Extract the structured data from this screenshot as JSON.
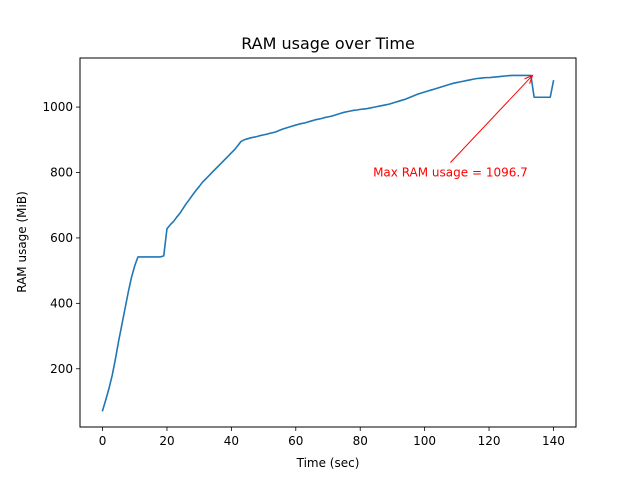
{
  "chart_data": {
    "type": "line",
    "title": "RAM usage over Time",
    "xlabel": "Time (sec)",
    "ylabel": "RAM usage (MiB)",
    "xlim": [
      -7,
      147
    ],
    "ylim": [
      22,
      1150
    ],
    "xticks": [
      0,
      20,
      40,
      60,
      80,
      100,
      120,
      140
    ],
    "yticks": [
      200,
      400,
      600,
      800,
      1000
    ],
    "grid": false,
    "series": [
      {
        "color": "#1f77b4",
        "x": [
          0,
          1,
          2,
          3,
          4,
          5,
          6,
          7,
          8,
          9,
          10,
          11,
          12,
          13,
          14,
          15,
          16,
          17,
          18,
          19,
          20,
          21,
          22,
          23,
          24,
          25,
          26,
          27,
          28,
          29,
          30,
          31,
          32,
          33,
          34,
          35,
          36,
          37,
          38,
          39,
          40,
          41,
          42,
          43,
          44,
          45,
          46,
          47,
          48,
          49,
          50,
          51,
          52,
          53,
          54,
          55,
          56,
          57,
          58,
          59,
          60,
          61,
          62,
          63,
          64,
          65,
          66,
          67,
          68,
          69,
          70,
          71,
          72,
          73,
          74,
          75,
          76,
          77,
          78,
          79,
          80,
          81,
          82,
          83,
          84,
          85,
          86,
          87,
          88,
          89,
          90,
          91,
          92,
          93,
          94,
          95,
          96,
          97,
          98,
          99,
          100,
          101,
          102,
          103,
          104,
          105,
          106,
          107,
          108,
          109,
          110,
          111,
          112,
          113,
          114,
          115,
          116,
          117,
          118,
          119,
          120,
          121,
          122,
          123,
          124,
          125,
          126,
          127,
          128,
          129,
          130,
          131,
          132,
          133,
          134,
          135,
          136,
          137,
          138,
          139,
          140
        ],
        "y": [
          72,
          105,
          140,
          180,
          230,
          285,
          335,
          385,
          435,
          480,
          515,
          542,
          542,
          542,
          542,
          542,
          542,
          542,
          542,
          545,
          628,
          640,
          650,
          663,
          675,
          690,
          705,
          718,
          732,
          745,
          757,
          770,
          780,
          790,
          800,
          810,
          820,
          830,
          840,
          850,
          860,
          870,
          882,
          895,
          900,
          903,
          906,
          908,
          910,
          913,
          915,
          917,
          920,
          922,
          925,
          929,
          933,
          936,
          939,
          942,
          945,
          948,
          950,
          952,
          955,
          958,
          961,
          963,
          965,
          968,
          970,
          972,
          975,
          978,
          981,
          984,
          986,
          988,
          990,
          991,
          993,
          994,
          995,
          997,
          999,
          1001,
          1003,
          1005,
          1007,
          1009,
          1012,
          1015,
          1018,
          1021,
          1024,
          1028,
          1032,
          1036,
          1040,
          1043,
          1046,
          1049,
          1052,
          1055,
          1058,
          1061,
          1064,
          1067,
          1070,
          1073,
          1075,
          1077,
          1079,
          1081,
          1083,
          1085,
          1087,
          1088,
          1089,
          1090,
          1090,
          1091,
          1092,
          1093,
          1094,
          1095,
          1096,
          1096.7,
          1096.7,
          1096.7,
          1096.7,
          1096.7,
          1096.7,
          1096.7,
          1030,
          1030,
          1030,
          1030,
          1030,
          1030,
          1080
        ]
      }
    ],
    "annotations": [
      {
        "text": "Max RAM usage = 1096.7",
        "color": "#ff0000",
        "point": [
          133.5,
          1096.7
        ],
        "text_position": [
          84,
          800
        ]
      }
    ]
  }
}
